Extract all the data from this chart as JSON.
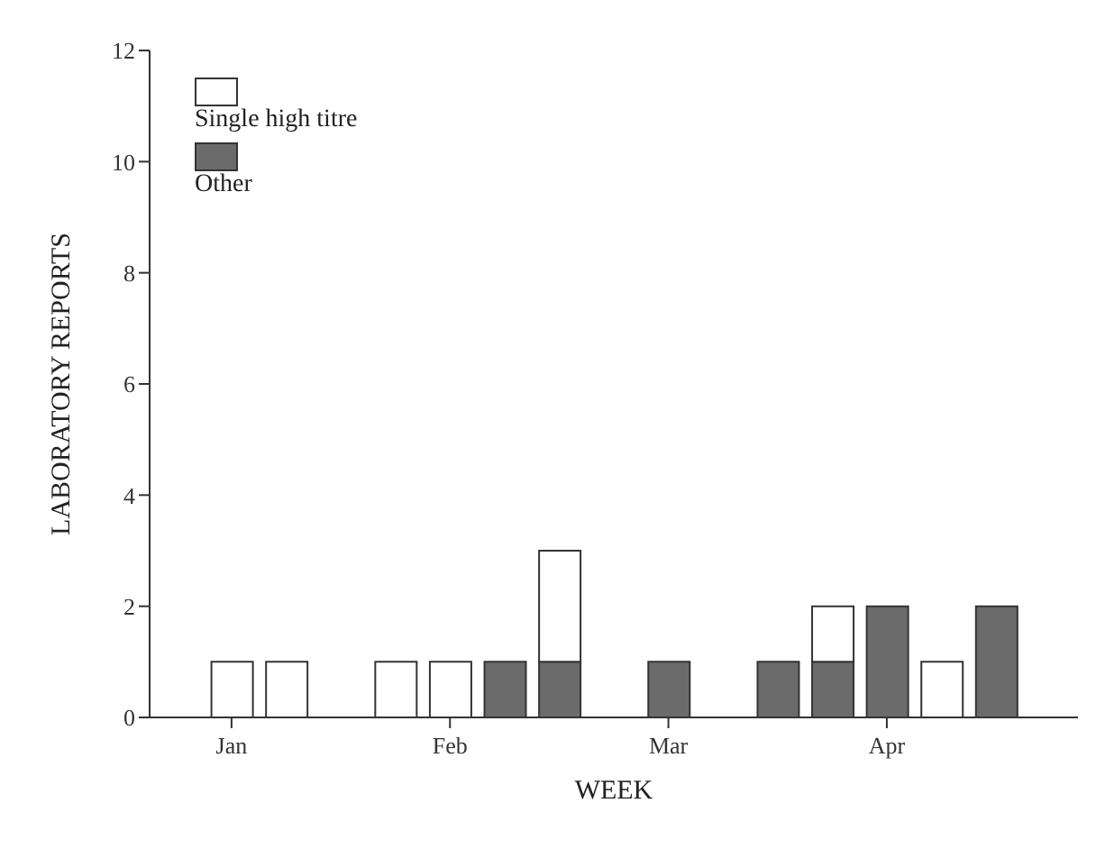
{
  "chart_data": {
    "type": "bar",
    "stacked": true,
    "xlabel": "WEEK",
    "ylabel": "LABORATORY REPORTS",
    "categories": [
      null,
      "Jan",
      null,
      null,
      null,
      "Feb",
      null,
      null,
      null,
      "Mar",
      null,
      null,
      null,
      "Apr",
      null,
      null,
      null
    ],
    "series": [
      {
        "name": "Other",
        "color": "#6b6b6b",
        "values": [
          null,
          null,
          null,
          null,
          null,
          null,
          1,
          1,
          null,
          1,
          null,
          1,
          1,
          2,
          null,
          2,
          null
        ]
      },
      {
        "name": "Single high titre",
        "color": "#ffffff",
        "values": [
          null,
          1,
          1,
          null,
          1,
          1,
          null,
          2,
          null,
          null,
          null,
          null,
          1,
          null,
          1,
          null,
          null
        ]
      }
    ],
    "ylim": [
      0,
      12
    ],
    "yticks": [
      0,
      2,
      4,
      6,
      8,
      10,
      12
    ],
    "grid": false,
    "legend": "top left"
  }
}
